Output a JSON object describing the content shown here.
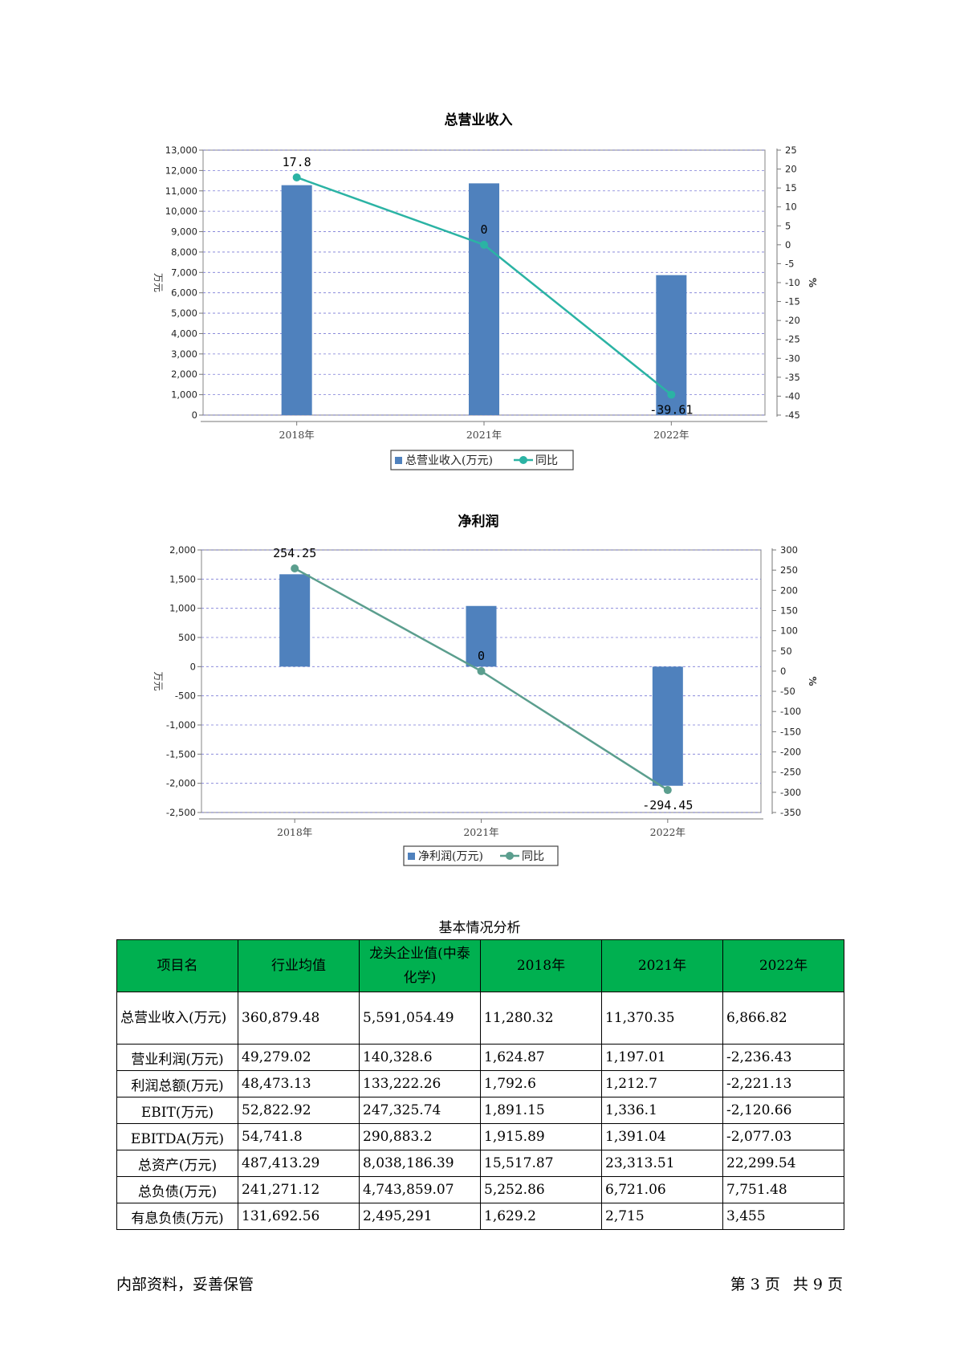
{
  "chart_data": [
    {
      "type": "bar",
      "title": "总营业收入",
      "categories": [
        "2018年",
        "2021年",
        "2022年"
      ],
      "ylabel": "万元",
      "y2label": "%",
      "ylim": [
        0,
        13000
      ],
      "y2lim": [
        -45,
        25
      ],
      "yticks": [
        0,
        1000,
        2000,
        3000,
        4000,
        5000,
        6000,
        7000,
        8000,
        9000,
        10000,
        11000,
        12000,
        13000
      ],
      "y2ticks": [
        25,
        20,
        15,
        10,
        5,
        0,
        -5,
        -10,
        -15,
        -20,
        -25,
        -30,
        -35,
        -40,
        -45
      ],
      "series": [
        {
          "name": "总营业收入(万元)",
          "type": "bar",
          "values": [
            11280.32,
            11370.35,
            6866.82
          ],
          "color": "#4f81bd"
        },
        {
          "name": "同比",
          "type": "line",
          "axis": "right",
          "values": [
            17.8,
            0,
            -39.61
          ],
          "labels": [
            "17.8",
            "0",
            "-39.61"
          ],
          "color": "#2bb3a4"
        }
      ],
      "grid": true,
      "legend": "bottom"
    },
    {
      "type": "bar",
      "title": "净利润",
      "categories": [
        "2018年",
        "2021年",
        "2022年"
      ],
      "ylabel": "万元",
      "y2label": "%",
      "ylim": [
        -2500,
        2000
      ],
      "y2lim": [
        -350,
        300
      ],
      "yticks": [
        2000,
        1500,
        1000,
        500,
        0,
        -500,
        -1000,
        -1500,
        -2000,
        -2500
      ],
      "y2ticks": [
        300,
        250,
        200,
        150,
        100,
        50,
        0,
        -50,
        -100,
        -150,
        -200,
        -250,
        -300,
        -350
      ],
      "series": [
        {
          "name": "净利润(万元)",
          "type": "bar",
          "values": [
            1583.1,
            1040.0,
            -2042.1
          ],
          "color": "#4f81bd"
        },
        {
          "name": "同比",
          "type": "line",
          "axis": "right",
          "values": [
            254.25,
            0,
            -294.45
          ],
          "labels": [
            "254.25",
            "0",
            "-294.45"
          ],
          "color": "#5b9e8e"
        }
      ],
      "grid": true,
      "legend": "bottom"
    }
  ],
  "table": {
    "caption": "基本情况分析",
    "headers": [
      "项目名",
      "行业均值",
      "龙头企业值(中泰化学)",
      "2018年",
      "2021年",
      "2022年"
    ],
    "rows": [
      [
        "总营业收入(万元)",
        "360,879.48",
        "5,591,054.49",
        "11,280.32",
        "11,370.35",
        "6,866.82"
      ],
      [
        "营业利润(万元)",
        "49,279.02",
        "140,328.6",
        "1,624.87",
        "1,197.01",
        "-2,236.43"
      ],
      [
        "利润总额(万元)",
        "48,473.13",
        "133,222.26",
        "1,792.6",
        "1,212.7",
        "-2,221.13"
      ],
      [
        "EBIT(万元)",
        "52,822.92",
        "247,325.74",
        "1,891.15",
        "1,336.1",
        "-2,120.66"
      ],
      [
        "EBITDA(万元)",
        "54,741.8",
        "290,883.2",
        "1,915.89",
        "1,391.04",
        "-2,077.03"
      ],
      [
        "总资产(万元)",
        "487,413.29",
        "8,038,186.39",
        "15,517.87",
        "23,313.51",
        "22,299.54"
      ],
      [
        "总负债(万元)",
        "241,271.12",
        "4,743,859.07",
        "5,252.86",
        "6,721.06",
        "7,751.48"
      ],
      [
        "有息负债(万元)",
        "131,692.56",
        "2,495,291",
        "1,629.2",
        "2,715",
        "3,455"
      ]
    ]
  },
  "footer": {
    "left": "内部资料，妥善保管",
    "page_prefix": "第",
    "page_num": "3",
    "page_mid": "页",
    "total_prefix": "共",
    "total_num": "9",
    "total_suffix": "页"
  }
}
